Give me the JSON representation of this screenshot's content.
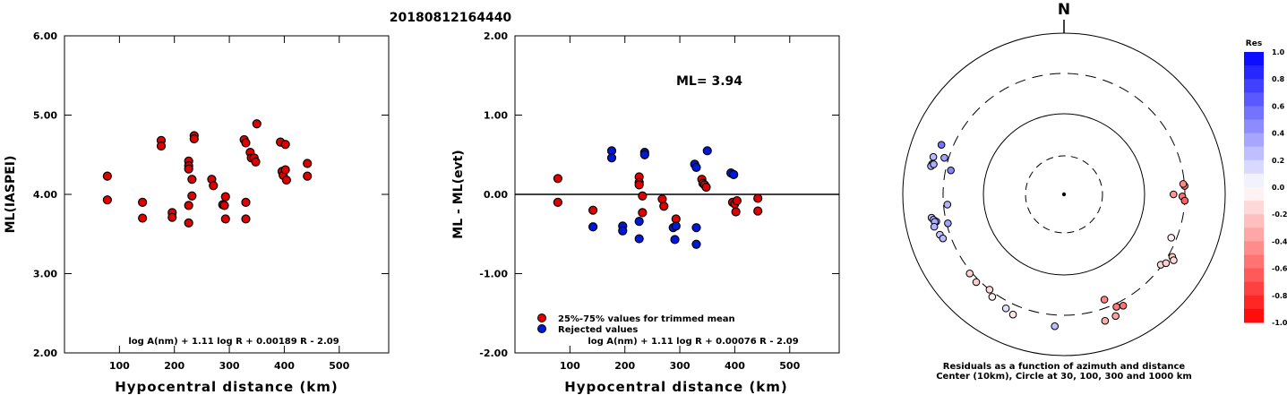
{
  "title": "20180812164440",
  "chart_data": [
    {
      "type": "scatter",
      "ylabel": "ML(IASPEI)",
      "xlabel": "Hypocentral distance (km)",
      "xlim": [
        0,
        590
      ],
      "ylim": [
        2.0,
        6.0
      ],
      "x_ticks": [
        "100",
        "200",
        "300",
        "400",
        "500"
      ],
      "y_ticks": [
        "2.00",
        "3.00",
        "4.00",
        "5.00",
        "6.00"
      ],
      "formula": "log A(nm) + 1.11 log R + 0.00189 R - 2.09",
      "points": [
        [
          78,
          4.23
        ],
        [
          78,
          3.93
        ],
        [
          142,
          3.9
        ],
        [
          142,
          3.7
        ],
        [
          176,
          4.68
        ],
        [
          176,
          4.61
        ],
        [
          196,
          3.77
        ],
        [
          196,
          3.71
        ],
        [
          226,
          4.42
        ],
        [
          226,
          4.36
        ],
        [
          226,
          4.32
        ],
        [
          226,
          3.86
        ],
        [
          226,
          3.64
        ],
        [
          232,
          4.19
        ],
        [
          232,
          3.98
        ],
        [
          236,
          4.74
        ],
        [
          236,
          4.7
        ],
        [
          268,
          4.19
        ],
        [
          271,
          4.11
        ],
        [
          288,
          3.87
        ],
        [
          291,
          3.86
        ],
        [
          293,
          3.69
        ],
        [
          293,
          3.97
        ],
        [
          327,
          4.69
        ],
        [
          330,
          4.65
        ],
        [
          330,
          3.9
        ],
        [
          330,
          3.69
        ],
        [
          338,
          4.53
        ],
        [
          340,
          4.46
        ],
        [
          345,
          4.46
        ],
        [
          348,
          4.41
        ],
        [
          350,
          4.89
        ],
        [
          393,
          4.66
        ],
        [
          396,
          4.29
        ],
        [
          398,
          4.24
        ],
        [
          402,
          4.63
        ],
        [
          402,
          4.31
        ],
        [
          404,
          4.18
        ],
        [
          442,
          4.39
        ],
        [
          442,
          4.23
        ]
      ]
    },
    {
      "type": "scatter",
      "ylabel": "ML - ML(evt)",
      "xlabel": "Hypocentral distance (km)",
      "xlim": [
        0,
        590
      ],
      "ylim": [
        -2.0,
        2.0
      ],
      "x_ticks": [
        "100",
        "200",
        "300",
        "400",
        "500"
      ],
      "y_ticks": [
        "-2.00",
        "-1.00",
        "0.00",
        "1.00",
        "2.00"
      ],
      "annotation": "ML= 3.94",
      "formula": "log A(nm) + 1.11 log R + 0.00076 R - 2.09",
      "colors": {
        "trimmed": "#e00000",
        "rejected": "#0018d8"
      },
      "legend": [
        {
          "label": "25%-75% values for trimmed mean",
          "group": "trimmed"
        },
        {
          "label": "Rejected values",
          "group": "rejected"
        }
      ],
      "series": [
        {
          "group": "trimmed",
          "points": [
            [
              78,
              0.2
            ],
            [
              78,
              -0.1
            ],
            [
              142,
              -0.2
            ],
            [
              226,
              0.22
            ],
            [
              226,
              0.15
            ],
            [
              226,
              0.12
            ],
            [
              232,
              -0.02
            ],
            [
              232,
              -0.23
            ],
            [
              268,
              -0.06
            ],
            [
              271,
              -0.15
            ],
            [
              293,
              -0.31
            ],
            [
              340,
              0.19
            ],
            [
              342,
              0.14
            ],
            [
              345,
              0.12
            ],
            [
              348,
              0.09
            ],
            [
              396,
              -0.1
            ],
            [
              400,
              -0.12
            ],
            [
              402,
              -0.22
            ],
            [
              404,
              -0.08
            ],
            [
              442,
              -0.05
            ],
            [
              442,
              -0.21
            ]
          ]
        },
        {
          "group": "rejected",
          "points": [
            [
              142,
              -0.41
            ],
            [
              176,
              0.55
            ],
            [
              176,
              0.46
            ],
            [
              196,
              -0.4
            ],
            [
              196,
              -0.46
            ],
            [
              226,
              -0.34
            ],
            [
              226,
              -0.56
            ],
            [
              236,
              0.53
            ],
            [
              236,
              0.5
            ],
            [
              288,
              -0.42
            ],
            [
              291,
              -0.57
            ],
            [
              293,
              -0.4
            ],
            [
              327,
              0.38
            ],
            [
              330,
              0.34
            ],
            [
              330,
              -0.42
            ],
            [
              330,
              -0.63
            ],
            [
              350,
              0.55
            ],
            [
              393,
              0.27
            ],
            [
              398,
              0.25
            ]
          ]
        }
      ]
    },
    {
      "type": "scatter",
      "subtype": "polar-residuals",
      "north_label": "N",
      "caption_line1": "Residuals as a function of azimuth and distance",
      "caption_line2": "Center (10km), Circle at 30, 100, 300 and 1000 km",
      "colorbar_title": "Res",
      "colorbar_ticks": [
        "1.0",
        "0.8",
        "0.6",
        "0.4",
        "0.2",
        "0.0",
        "-0.2",
        "-0.4",
        "-0.6",
        "-0.8",
        "-1.0"
      ],
      "colorbar_range": [
        -1.0,
        1.0
      ],
      "positive_color": "#0000ff",
      "negative_color": "#ff0000",
      "points": [
        {
          "az": 282,
          "dist": 260,
          "res": 0.48
        },
        {
          "az": 292,
          "dist": 420,
          "res": 0.55
        },
        {
          "az": 287,
          "dist": 340,
          "res": 0.37
        },
        {
          "az": 286,
          "dist": 470,
          "res": 0.28
        },
        {
          "az": 283,
          "dist": 460,
          "res": 0.26
        },
        {
          "az": 282,
          "dist": 470,
          "res": 0.33
        },
        {
          "az": 283,
          "dist": 440,
          "res": 0.32
        },
        {
          "az": 260,
          "dist": 450,
          "res": 0.27
        },
        {
          "az": 259,
          "dist": 430,
          "res": 0.32
        },
        {
          "az": 258,
          "dist": 400,
          "res": 0.36
        },
        {
          "az": 258,
          "dist": 420,
          "res": 0.33
        },
        {
          "az": 256,
          "dist": 440,
          "res": 0.3
        },
        {
          "az": 256,
          "dist": 290,
          "res": 0.37
        },
        {
          "az": 252,
          "dist": 400,
          "res": 0.24
        },
        {
          "az": 250,
          "dist": 380,
          "res": 0.27
        },
        {
          "az": 265,
          "dist": 270,
          "res": 0.3
        },
        {
          "az": 230,
          "dist": 320,
          "res": -0.18
        },
        {
          "az": 225,
          "dist": 330,
          "res": -0.2
        },
        {
          "az": 218,
          "dist": 300,
          "res": -0.15
        },
        {
          "az": 215,
          "dist": 340,
          "res": -0.06
        },
        {
          "az": 207,
          "dist": 370,
          "res": 0.12
        },
        {
          "az": 203,
          "dist": 400,
          "res": -0.1
        },
        {
          "az": 184,
          "dist": 420,
          "res": 0.25
        },
        {
          "az": 126,
          "dist": 290,
          "res": -0.16
        },
        {
          "az": 124,
          "dist": 320,
          "res": -0.19
        },
        {
          "az": 120,
          "dist": 340,
          "res": -0.22
        },
        {
          "az": 121,
          "dist": 370,
          "res": -0.14
        },
        {
          "az": 112,
          "dist": 260,
          "res": -0.05
        },
        {
          "az": 159,
          "dist": 240,
          "res": -0.48
        },
        {
          "az": 152,
          "dist": 350,
          "res": -0.55
        },
        {
          "az": 155,
          "dist": 330,
          "res": -0.52
        },
        {
          "az": 162,
          "dist": 430,
          "res": -0.33
        },
        {
          "az": 157,
          "dist": 420,
          "res": -0.37
        },
        {
          "az": 90,
          "dist": 220,
          "res": -0.42
        },
        {
          "az": 91,
          "dist": 280,
          "res": -0.56
        },
        {
          "az": 93,
          "dist": 300,
          "res": -0.61
        },
        {
          "az": 86,
          "dist": 300,
          "res": -0.52
        },
        {
          "az": 85,
          "dist": 290,
          "res": -0.47
        }
      ]
    }
  ]
}
